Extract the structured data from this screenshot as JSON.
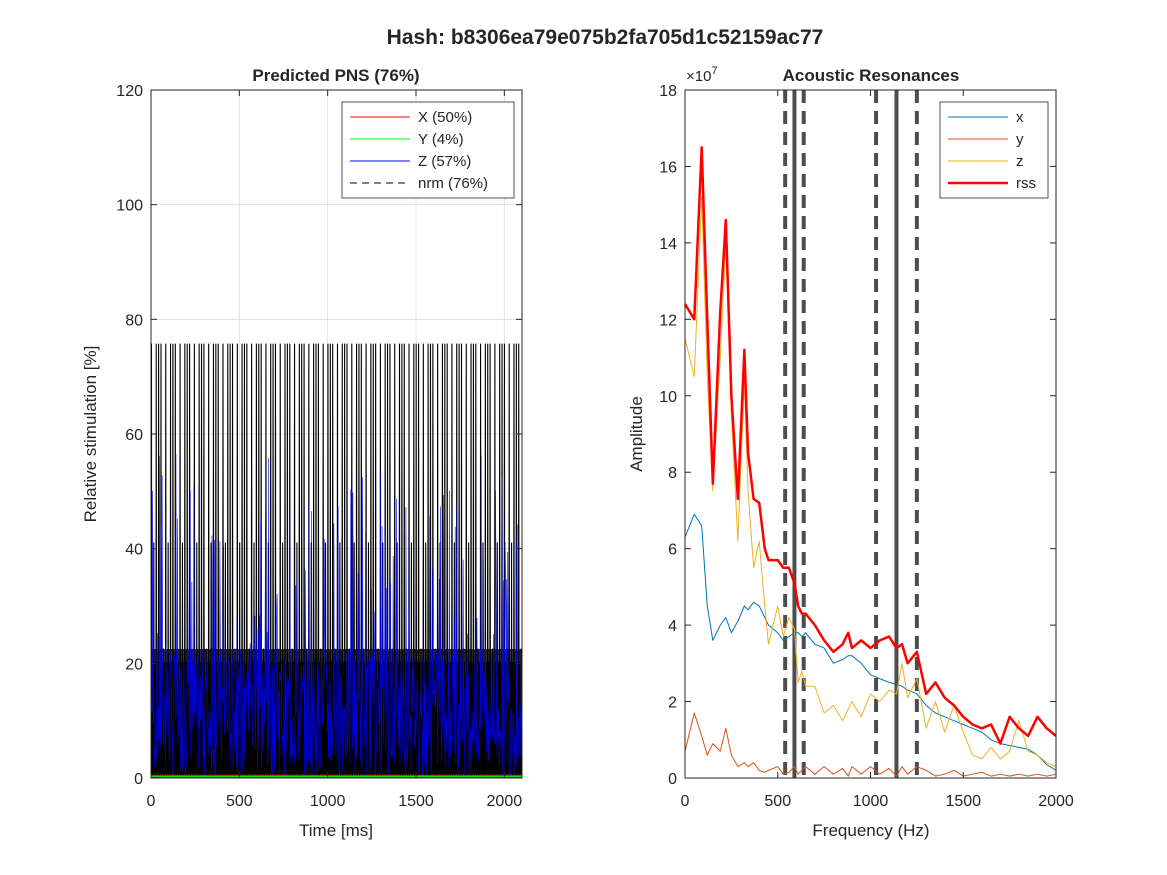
{
  "figure_title": "Hash: b8306ea79e075b2fa705d1c52159ac77",
  "chart_data": [
    {
      "type": "line",
      "title": "Predicted PNS (76%)",
      "xlabel": "Time [ms]",
      "ylabel": "Relative stimulation [%]",
      "xlim": [
        0,
        2100
      ],
      "ylim": [
        0,
        120
      ],
      "xticks": [
        0,
        500,
        1000,
        1500,
        2000
      ],
      "yticks": [
        0,
        20,
        40,
        60,
        80,
        100,
        120
      ],
      "grid": true,
      "legend_position": "top-right",
      "series": [
        {
          "name": "X (50%)",
          "color": "#ff0000",
          "style": "solid",
          "description": "rapid oscillation, peak value",
          "peak": 41,
          "level_bands": [
            22.5,
            41
          ]
        },
        {
          "name": "Y (4%)",
          "color": "#00ff00",
          "style": "solid",
          "peak": 3
        },
        {
          "name": "Z (57%)",
          "color": "#0000ff",
          "style": "solid",
          "peak": 57
        },
        {
          "name": "nrm (76%)",
          "color": "#000000",
          "style": "dashed",
          "peak": 75.7,
          "level_bands": [
            22.5,
            41,
            75.7
          ]
        }
      ],
      "oscillation": {
        "period_ms": 13.5,
        "t_start": 0,
        "t_end": 2100
      }
    },
    {
      "type": "line",
      "title": "Acoustic Resonances",
      "xlabel": "Frequency (Hz)",
      "ylabel": "Amplitude",
      "y_exponent_label": "×10",
      "y_exponent": "7",
      "xlim": [
        0,
        2000
      ],
      "ylim": [
        0,
        18
      ],
      "xticks": [
        0,
        500,
        1000,
        1500,
        2000
      ],
      "yticks": [
        0,
        2,
        4,
        6,
        8,
        10,
        12,
        14,
        16,
        18
      ],
      "grid": false,
      "legend_position": "top-right",
      "resonance_lines": {
        "solid": [
          590,
          1140
        ],
        "dashed": [
          540,
          640,
          1030,
          1250
        ]
      },
      "frequency": [
        0,
        50,
        90,
        120,
        150,
        190,
        220,
        250,
        285,
        320,
        340,
        370,
        400,
        430,
        450,
        500,
        530,
        560,
        590,
        610,
        630,
        650,
        700,
        750,
        800,
        850,
        880,
        900,
        950,
        1000,
        1050,
        1100,
        1140,
        1170,
        1200,
        1250,
        1300,
        1350,
        1400,
        1450,
        1500,
        1550,
        1600,
        1650,
        1700,
        1750,
        1800,
        1850,
        1900,
        1950,
        2000
      ],
      "series": [
        {
          "name": "x",
          "color": "#0072bd",
          "width": 1,
          "values": [
            6.3,
            6.9,
            6.6,
            4.5,
            3.6,
            4.0,
            4.2,
            3.8,
            4.1,
            4.5,
            4.4,
            4.6,
            4.5,
            4.2,
            4.0,
            3.8,
            3.6,
            3.7,
            3.8,
            3.8,
            3.7,
            3.8,
            3.5,
            3.4,
            3.0,
            3.1,
            3.2,
            3.2,
            3.0,
            2.7,
            2.6,
            2.5,
            2.45,
            2.4,
            2.3,
            2.2,
            1.9,
            1.7,
            1.6,
            1.5,
            1.4,
            1.3,
            1.2,
            1.0,
            0.9,
            0.85,
            0.8,
            0.75,
            0.6,
            0.35,
            0.2
          ]
        },
        {
          "name": "y",
          "color": "#d95319",
          "width": 1,
          "values": [
            0.7,
            1.7,
            1.1,
            0.6,
            0.9,
            0.7,
            1.3,
            0.6,
            0.3,
            0.4,
            0.3,
            0.4,
            0.2,
            0.15,
            0.2,
            0.3,
            0.1,
            0.15,
            0.3,
            0.1,
            0.2,
            0.3,
            0.1,
            0.3,
            0.1,
            0.25,
            0.05,
            0.3,
            0.1,
            0.3,
            0.1,
            0.25,
            0.05,
            0.3,
            0.1,
            0.3,
            0.2,
            0.05,
            0.1,
            0.2,
            0.05,
            0.1,
            0.15,
            0.05,
            0.1,
            0.05,
            0.1,
            0.05,
            0.1,
            0.05,
            0.1
          ]
        },
        {
          "name": "z",
          "color": "#edb120",
          "width": 1,
          "values": [
            11.5,
            10.5,
            15.2,
            10.5,
            7.5,
            11.0,
            14.0,
            9.5,
            6.2,
            10.4,
            7.5,
            5.5,
            6.2,
            4.5,
            3.5,
            4.5,
            3.7,
            4.2,
            3.9,
            2.5,
            2.8,
            2.4,
            2.4,
            1.7,
            1.9,
            1.5,
            1.8,
            2.0,
            1.6,
            2.2,
            2.0,
            2.3,
            2.2,
            3.0,
            2.1,
            2.6,
            1.3,
            2.0,
            1.2,
            1.9,
            1.2,
            0.6,
            0.5,
            0.8,
            0.5,
            0.7,
            1.5,
            0.7,
            0.6,
            0.4,
            0.3
          ]
        },
        {
          "name": "rss",
          "color": "#ff0000",
          "width": 2.5,
          "values": [
            12.4,
            12.0,
            16.5,
            12.0,
            7.7,
            12.2,
            14.6,
            10.0,
            7.3,
            11.2,
            8.5,
            7.3,
            7.2,
            6.0,
            5.7,
            5.7,
            5.5,
            5.5,
            5.1,
            4.5,
            4.3,
            4.3,
            4.0,
            3.6,
            3.3,
            3.5,
            3.8,
            3.4,
            3.6,
            3.4,
            3.6,
            3.7,
            3.4,
            3.5,
            3.0,
            3.3,
            2.2,
            2.5,
            2.1,
            1.9,
            1.6,
            1.4,
            1.3,
            1.4,
            0.9,
            1.6,
            1.3,
            1.1,
            1.6,
            1.3,
            1.1
          ]
        }
      ]
    }
  ]
}
